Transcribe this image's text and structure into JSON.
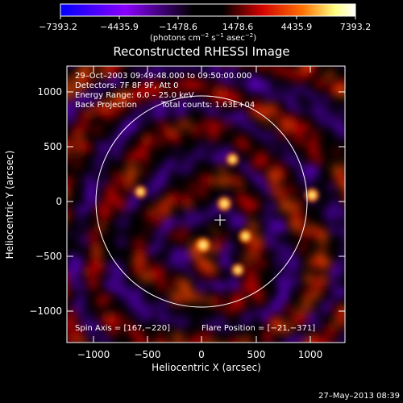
{
  "colorbar": {
    "ticks": [
      "−7393.2",
      "−4435.9",
      "−1478.6",
      "1478.6",
      "4435.9",
      "7393.2"
    ],
    "units_main": "(photons cm",
    "units_exp1": "−2",
    "units_mid": " s",
    "units_exp2": "−1",
    "units_end": " asec",
    "units_exp3": "−2",
    "units_close": ")"
  },
  "title": "Reconstructed RHESSI Image",
  "info": {
    "line1": "29–Oct–2003 09:49:48.000 to 09:50:00.000",
    "line2": "Detectors: 7F 8F 9F, Att 0",
    "line3": "Energy Range: 6.0 – 25.0 keV",
    "line4a": "Back Projection",
    "line4b": "Total counts: 1.63E+04"
  },
  "footer_left": "Spin Axis = [167,−220]",
  "footer_right": "Flare Position = [−21,−371]",
  "xlabel": "Heliocentric X (arcsec)",
  "ylabel": "Heliocentric Y (arcsec)",
  "xticks": [
    "−1000",
    "−500",
    "0",
    "500",
    "1000"
  ],
  "yticks": [
    "1000",
    "500",
    "0",
    "−500",
    "−1000"
  ],
  "timestamp": "27–May–2013 08:39",
  "colors": {
    "background": "#000000",
    "axes": "#ffffff",
    "limb": "#ffffff"
  },
  "colormap": [
    "#0000ff",
    "#8a00ff",
    "#000000",
    "#000000",
    "#d00000",
    "#ff7000",
    "#ffff80",
    "#ffffff"
  ],
  "image_data": {
    "x_range_arcsec": [
      -1280,
      1290
    ],
    "y_range_arcsec": [
      -1270,
      1280
    ],
    "sun_center": [
      0,
      0
    ],
    "limb_radius_arcsec": 975,
    "map_center": [
      -21,
      -371
    ],
    "spin_axis": [
      167,
      -220
    ],
    "bright_sources": [
      {
        "x": -21,
        "y": -371,
        "level": 1.0
      },
      {
        "x": 175,
        "y": 10,
        "level": 0.85
      },
      {
        "x": 370,
        "y": -290,
        "level": 0.7
      },
      {
        "x": 985,
        "y": 90,
        "level": 0.75
      },
      {
        "x": 250,
        "y": 420,
        "level": 0.55
      },
      {
        "x": -600,
        "y": 120,
        "level": 0.5
      },
      {
        "x": 300,
        "y": -600,
        "level": 0.55
      }
    ]
  }
}
